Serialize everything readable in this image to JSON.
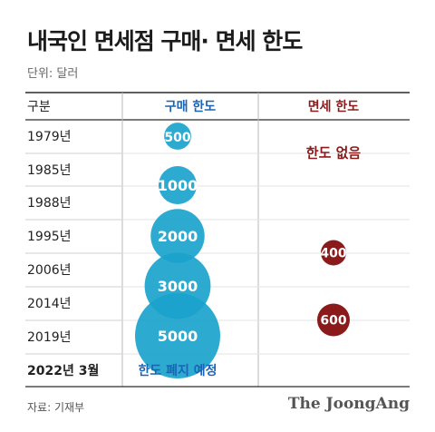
{
  "title": "내국인 면세점 구매· 면세 한도",
  "unit_label": "단위: 달러",
  "source": "자료: 기재부",
  "brand": "The JoongAng",
  "colors": {
    "blue": "#1ba3cc",
    "blue_text": "#1b64b4",
    "red": "#8b1a1a",
    "header_line": "#2a2a2a",
    "row_line": "#cfcfcf",
    "divider": "#b8b8b8"
  },
  "chart_data": {
    "type": "table",
    "headers": [
      "구분",
      "구매 한도",
      "면세 한도"
    ],
    "years": [
      "1979년",
      "1985년",
      "1988년",
      "1995년",
      "2006년",
      "2014년",
      "2019년",
      "2022년 3월"
    ],
    "purchase_limit": [
      {
        "from": "1979년",
        "value": 500,
        "label": "500"
      },
      {
        "from": "1985년",
        "value": 1000,
        "label": "1000"
      },
      {
        "from": "1995년",
        "value": 2000,
        "label": "2000"
      },
      {
        "from": "2006년",
        "value": 3000,
        "label": "3000"
      },
      {
        "from": "2019년",
        "value": 5000,
        "label": "5000"
      }
    ],
    "purchase_limit_note": {
      "at": "2022년 3월",
      "text": "한도 폐지 예정"
    },
    "duty_free_limit": [
      {
        "span": [
          "1979년",
          "1988년"
        ],
        "text": "한도 없음"
      },
      {
        "span": [
          "1995년",
          "2006년"
        ],
        "value": 400,
        "label": "400"
      },
      {
        "span": [
          "2014년",
          "2019년"
        ],
        "value": 600,
        "label": "600"
      }
    ]
  }
}
